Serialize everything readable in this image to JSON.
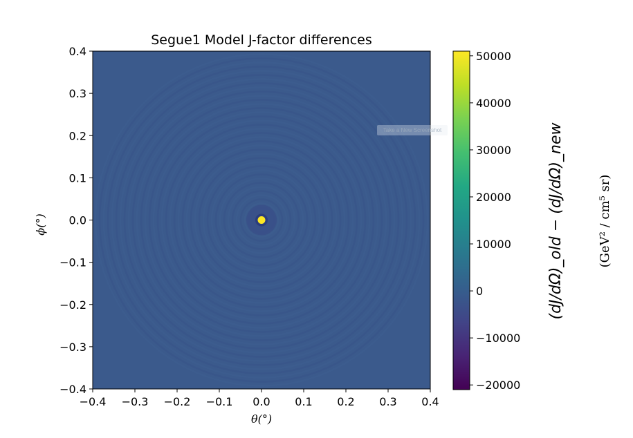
{
  "chart_data": {
    "type": "heatmap",
    "title": "Segue1 Model J-factor differences",
    "xlabel": "θ(°)",
    "ylabel": "ϕ(°)",
    "xlim": [
      -0.4,
      0.4
    ],
    "ylim": [
      -0.4,
      0.4
    ],
    "xticks": [
      -0.4,
      -0.3,
      -0.2,
      -0.1,
      0.0,
      0.1,
      0.2,
      0.3,
      0.4
    ],
    "yticks": [
      -0.4,
      -0.3,
      -0.2,
      -0.1,
      0.0,
      0.1,
      0.2,
      0.3,
      0.4
    ],
    "xtick_labels": [
      "−0.4",
      "−0.3",
      "−0.2",
      "−0.1",
      "0.0",
      "0.1",
      "0.2",
      "0.3",
      "0.4"
    ],
    "ytick_labels": [
      "−0.4",
      "−0.3",
      "−0.2",
      "−0.1",
      "0.0",
      "0.1",
      "0.2",
      "0.3",
      "0.4"
    ],
    "colormap": "viridis",
    "background_value": 0,
    "peak": {
      "theta": 0.0,
      "phi": 0.0,
      "value": 51000
    },
    "colorbar": {
      "range": [
        -21000,
        51000
      ],
      "ticks": [
        -20000,
        -10000,
        0,
        10000,
        20000,
        30000,
        40000,
        50000
      ],
      "tick_labels": [
        "−20000",
        "−10000",
        "0",
        "10000",
        "20000",
        "30000",
        "40000",
        "50000"
      ],
      "label_main": "(dJ/dΩ)_old − (dJ/dΩ)_new",
      "label_units": "(GeV² / cm⁵ sr)"
    }
  },
  "overlay": {
    "watermark_text": "Take a New Screenshot"
  }
}
